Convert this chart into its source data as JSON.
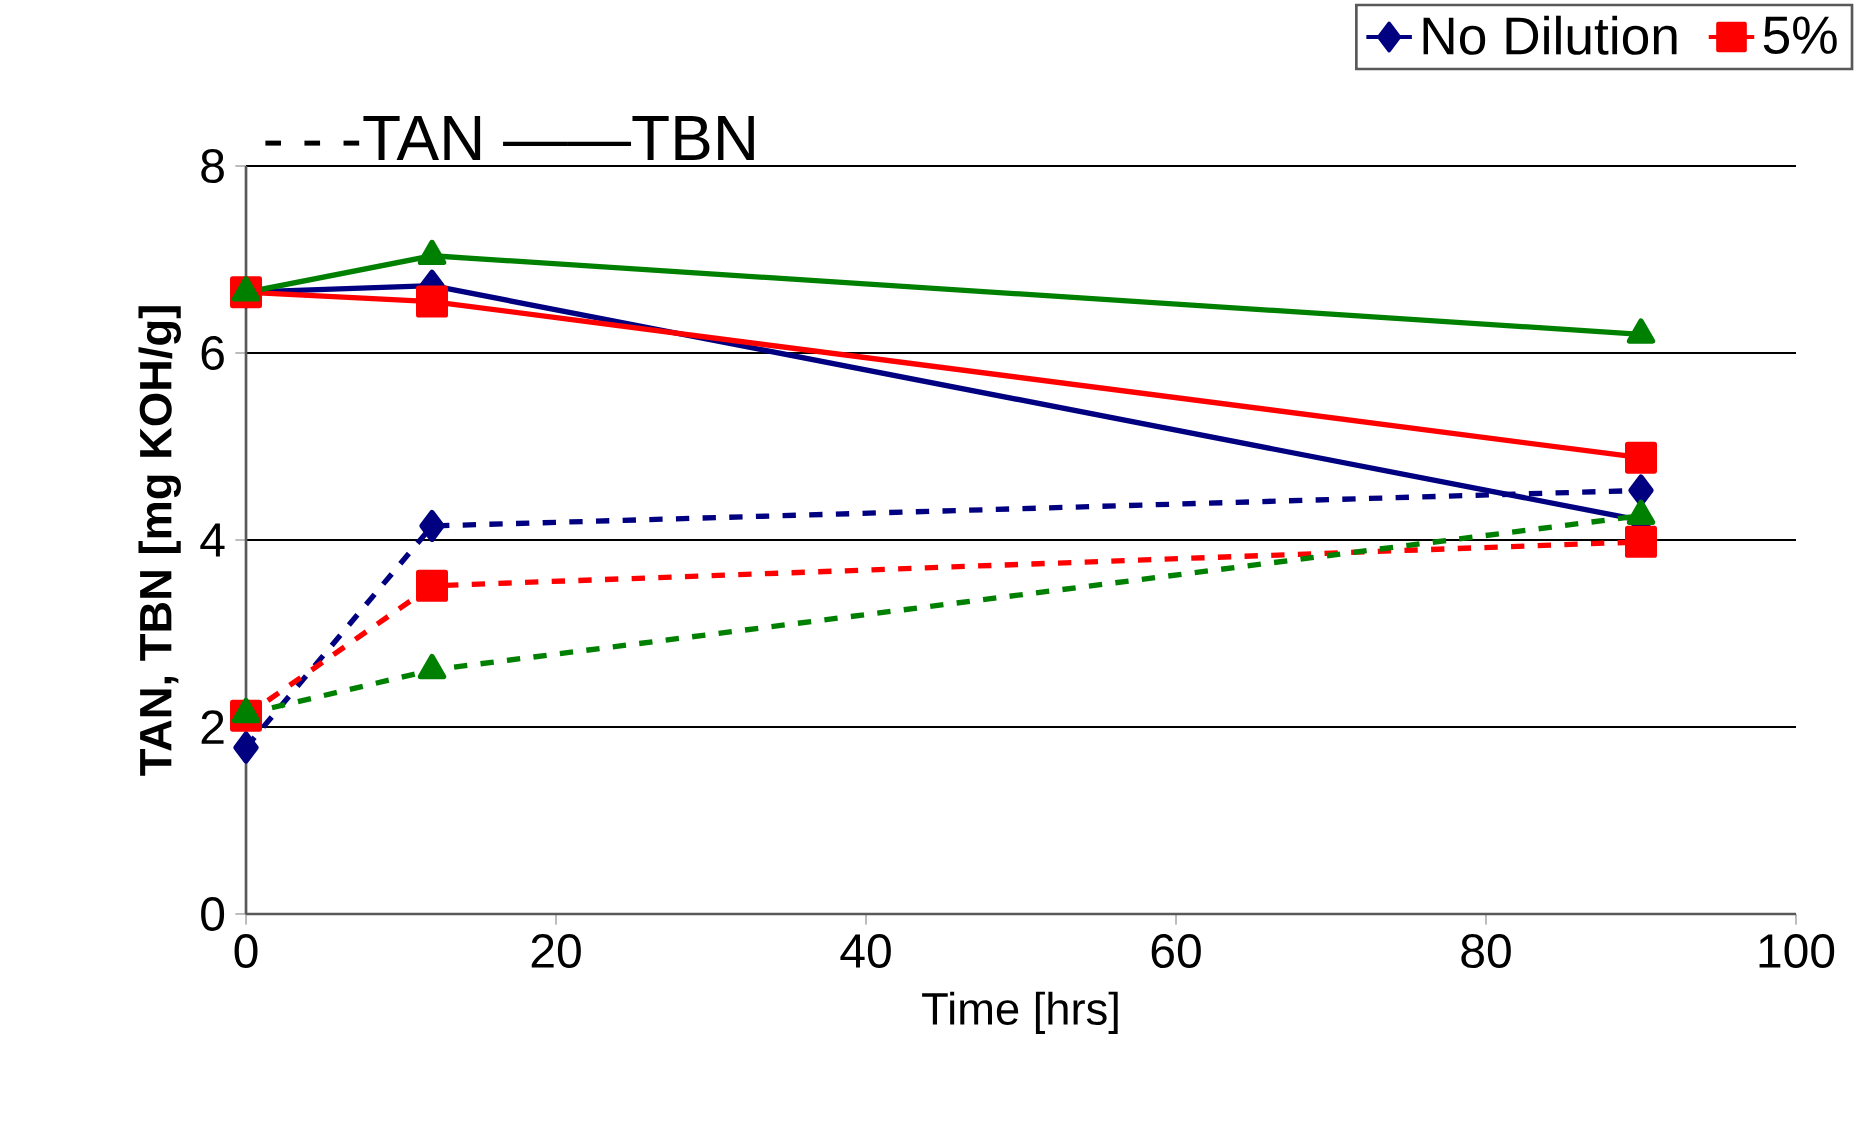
{
  "chart_data": {
    "type": "line",
    "xlabel": "Time [hrs]",
    "ylabel": "TAN, TBN [mg KOH/g]",
    "annotations": [
      "- - -TAN  ——TBN"
    ],
    "xlim": [
      0,
      100
    ],
    "xticks": [
      0,
      20,
      40,
      60,
      80,
      100
    ],
    "ylim": [
      0,
      8
    ],
    "yticks": [
      0,
      2,
      4,
      6,
      8
    ],
    "grid": "y",
    "legend": "top right",
    "x": [
      0,
      12,
      90
    ],
    "series": [
      {
        "name": "No Dilution",
        "color": "#000080",
        "marker": "diamond",
        "line_style": "solid",
        "values": [
          6.65,
          6.72,
          4.21
        ]
      },
      {
        "name": "5%",
        "color": "#ff0000",
        "marker": "square",
        "line_style": "solid",
        "values": [
          6.65,
          6.55,
          4.88
        ]
      },
      {
        "color": "#008000",
        "marker": "triangle",
        "line_style": "solid",
        "values": [
          6.65,
          7.04,
          6.2
        ]
      },
      {
        "color": "#000080",
        "marker": "diamond",
        "line_style": "dashed",
        "values": [
          1.78,
          4.15,
          4.53
        ]
      },
      {
        "color": "#ff0000",
        "marker": "square",
        "line_style": "dashed",
        "values": [
          2.12,
          3.51,
          3.98
        ]
      },
      {
        "color": "#008000",
        "marker": "triangle",
        "line_style": "dashed",
        "values": [
          2.14,
          2.61,
          4.26
        ]
      }
    ]
  }
}
